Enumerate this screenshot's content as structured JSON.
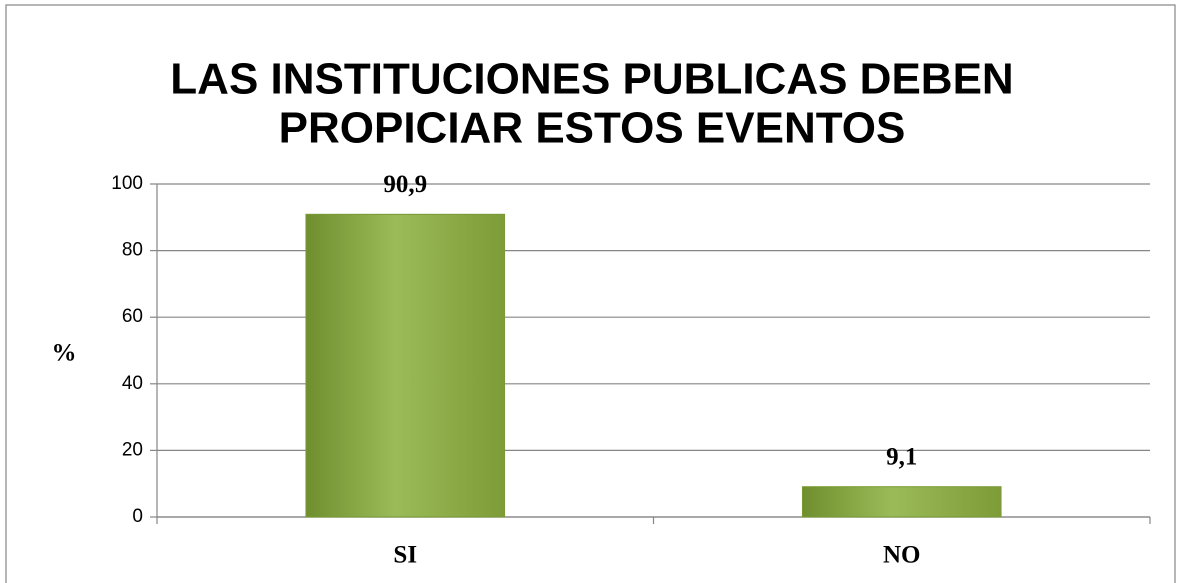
{
  "chart_data": {
    "type": "bar",
    "title": [
      "LAS INSTITUCIONES PUBLICAS DEBEN",
      "PROPICIAR ESTOS EVENTOS"
    ],
    "y_label": "%",
    "categories": [
      "SI",
      "NO"
    ],
    "values": [
      90.9,
      9.1
    ],
    "value_labels": [
      "90,9",
      "9,1"
    ],
    "color": "#9bbb59",
    "ylim": [
      0,
      100
    ],
    "yticks": [
      0,
      20,
      40,
      60,
      80,
      100
    ],
    "grid": true
  }
}
